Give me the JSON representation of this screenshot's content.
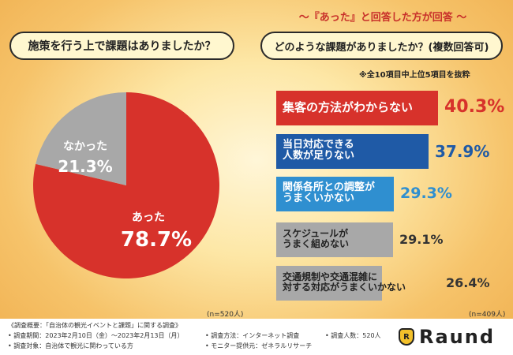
{
  "header": {
    "question_left": "施策を行う上で課題はありましたか？",
    "question_right": "どのような課題がありましたか？(複数回答可)",
    "subtitle": "～『あった』と回答した方が回答 ～",
    "note": "※全10項目中上位5項目を抜粋"
  },
  "colors": {
    "red": "#d7322b",
    "blue": "#1f5aa6",
    "lightblue": "#2f8fd0",
    "gray": "#a8a8a8"
  },
  "chart_data": [
    {
      "type": "pie",
      "slices": [
        {
          "label": "あった",
          "value_text": "78.7%",
          "value": 78.7
        },
        {
          "label": "なかった",
          "value_text": "21.3%",
          "value": 21.3
        }
      ],
      "sample_size": "(n=520人)"
    },
    {
      "type": "bar",
      "orientation": "horizontal",
      "categories": [
        "集客の方法がわからない",
        "当日対応できる人数が足りない",
        "関係各所との調整がうまくいかない",
        "スケジュールがうまく組めない",
        "交通規制や交通混雑に対する対応がうまくいかない"
      ],
      "display_lines": [
        [
          "集客の方法がわからない"
        ],
        [
          "当日対応できる",
          "人数が足りない"
        ],
        [
          "関係各所との調整が",
          "うまくいかない"
        ],
        [
          "スケジュールが",
          "うまく組めない"
        ],
        [
          "交通規制や交通混雑に",
          "対する対応がうまくいかない"
        ]
      ],
      "values": [
        40.3,
        37.9,
        29.3,
        29.1,
        26.4
      ],
      "value_texts": [
        "40.3%",
        "37.9%",
        "29.3%",
        "29.1%",
        "26.4%"
      ],
      "sample_size": "(n=409人)"
    }
  ],
  "footer": {
    "line1": "《調査概要：「自治体の観光イベントと課題」に関する調査》",
    "line2": "• 調査期間：2023年2月10日（金）～2023年2月13日（月）",
    "line3": "• 調査対象：自治体で観光に関わっている方",
    "line4": "• 調査方法：インターネット調査",
    "line5": "• モニター提供元：ゼネラルリサーチ",
    "line6": "• 調査人数：520人",
    "logo_text": "Raund",
    "logo_mark": "R"
  }
}
